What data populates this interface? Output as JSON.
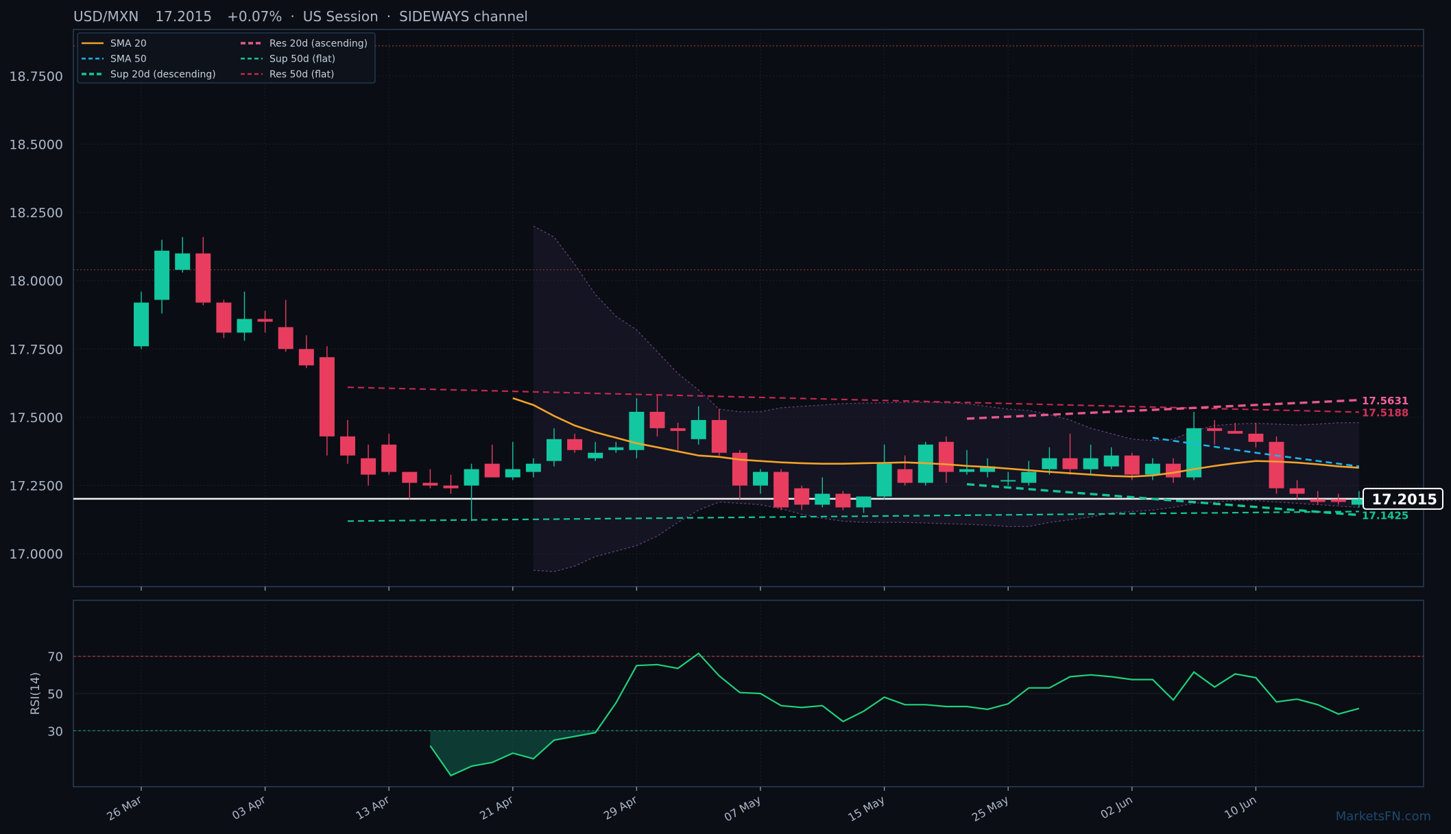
{
  "header": {
    "symbol": "USD/MXN",
    "price": "17.2015",
    "change": "+0.07%",
    "session": "US Session",
    "pattern": "SIDEWAYS channel",
    "separator": "·"
  },
  "watermark": "MarketsFN.com",
  "colors": {
    "background": "#0b0e15",
    "panel_border": "#2a3e57",
    "up": "#13c8a0",
    "down": "#e83d5f",
    "sma20": "#f2a32a",
    "sma50": "#1eb4ea",
    "support": "#14c695",
    "resistance_20d": "#e8588c",
    "resistance_50d": "#c4284f",
    "rsi": "#1fd17a",
    "band": "#7a4c8e"
  },
  "chart_data": [
    {
      "type": "candlestick",
      "title": "USD/MXN",
      "ylim": [
        16.88,
        18.92
      ],
      "y_ticks": [
        "17.0000",
        "17.2500",
        "17.5000",
        "17.7500",
        "18.0000",
        "18.2500",
        "18.5000",
        "18.7500"
      ],
      "y_tick_values": [
        17.0,
        17.25,
        17.5,
        17.75,
        18.0,
        18.25,
        18.5,
        18.75
      ],
      "x_ticks": [
        "26 Mar",
        "03 Apr",
        "13 Apr",
        "21 Apr",
        "29 Apr",
        "07 May",
        "15 May",
        "25 May",
        "02 Jun",
        "10 Jun"
      ],
      "x_tick_bars": [
        0,
        6,
        12,
        18,
        24,
        30,
        36,
        42,
        48,
        54
      ],
      "legend": {
        "position": "top-left",
        "entries": [
          {
            "name": "SMA 20",
            "style": "solid",
            "color": "#f2a32a"
          },
          {
            "name": "SMA 50",
            "style": "dashed",
            "color": "#1eb4ea"
          },
          {
            "name": "Sup 20d (descending)",
            "style": "dashed-thick",
            "color": "#14c695"
          },
          {
            "name": "Res 20d (ascending)",
            "style": "dashed-thick",
            "color": "#e8588c"
          },
          {
            "name": "Sup 50d (flat)",
            "style": "dashed",
            "color": "#14c695"
          },
          {
            "name": "Res 50d (flat)",
            "style": "dashed",
            "color": "#c4284f"
          }
        ]
      },
      "candles": [
        {
          "o": 17.76,
          "h": 17.96,
          "l": 17.75,
          "c": 17.92
        },
        {
          "o": 17.93,
          "h": 18.15,
          "l": 17.88,
          "c": 18.11
        },
        {
          "o": 18.04,
          "h": 18.16,
          "l": 18.03,
          "c": 18.1
        },
        {
          "o": 18.1,
          "h": 18.16,
          "l": 17.91,
          "c": 17.92
        },
        {
          "o": 17.92,
          "h": 17.93,
          "l": 17.79,
          "c": 17.81
        },
        {
          "o": 17.81,
          "h": 17.96,
          "l": 17.78,
          "c": 17.86
        },
        {
          "o": 17.86,
          "h": 17.89,
          "l": 17.81,
          "c": 17.85
        },
        {
          "o": 17.83,
          "h": 17.93,
          "l": 17.74,
          "c": 17.75
        },
        {
          "o": 17.75,
          "h": 17.8,
          "l": 17.68,
          "c": 17.69
        },
        {
          "o": 17.72,
          "h": 17.76,
          "l": 17.36,
          "c": 17.43
        },
        {
          "o": 17.43,
          "h": 17.49,
          "l": 17.33,
          "c": 17.36
        },
        {
          "o": 17.35,
          "h": 17.4,
          "l": 17.25,
          "c": 17.29
        },
        {
          "o": 17.4,
          "h": 17.44,
          "l": 17.29,
          "c": 17.3
        },
        {
          "o": 17.3,
          "h": 17.3,
          "l": 17.2,
          "c": 17.26
        },
        {
          "o": 17.26,
          "h": 17.31,
          "l": 17.24,
          "c": 17.25
        },
        {
          "o": 17.25,
          "h": 17.29,
          "l": 17.22,
          "c": 17.24
        },
        {
          "o": 17.25,
          "h": 17.33,
          "l": 17.12,
          "c": 17.31
        },
        {
          "o": 17.33,
          "h": 17.4,
          "l": 17.28,
          "c": 17.28
        },
        {
          "o": 17.28,
          "h": 17.41,
          "l": 17.27,
          "c": 17.31
        },
        {
          "o": 17.3,
          "h": 17.35,
          "l": 17.28,
          "c": 17.33
        },
        {
          "o": 17.34,
          "h": 17.46,
          "l": 17.32,
          "c": 17.42
        },
        {
          "o": 17.42,
          "h": 17.44,
          "l": 17.37,
          "c": 17.38
        },
        {
          "o": 17.35,
          "h": 17.41,
          "l": 17.34,
          "c": 17.37
        },
        {
          "o": 17.38,
          "h": 17.41,
          "l": 17.37,
          "c": 17.39
        },
        {
          "o": 17.38,
          "h": 17.57,
          "l": 17.35,
          "c": 17.52
        },
        {
          "o": 17.52,
          "h": 17.58,
          "l": 17.43,
          "c": 17.46
        },
        {
          "o": 17.46,
          "h": 17.48,
          "l": 17.38,
          "c": 17.45
        },
        {
          "o": 17.42,
          "h": 17.54,
          "l": 17.4,
          "c": 17.49
        },
        {
          "o": 17.49,
          "h": 17.53,
          "l": 17.36,
          "c": 17.37
        },
        {
          "o": 17.37,
          "h": 17.38,
          "l": 17.2,
          "c": 17.25
        },
        {
          "o": 17.25,
          "h": 17.31,
          "l": 17.22,
          "c": 17.3
        },
        {
          "o": 17.3,
          "h": 17.31,
          "l": 17.16,
          "c": 17.17
        },
        {
          "o": 17.24,
          "h": 17.25,
          "l": 17.16,
          "c": 17.18
        },
        {
          "o": 17.18,
          "h": 17.28,
          "l": 17.17,
          "c": 17.22
        },
        {
          "o": 17.22,
          "h": 17.23,
          "l": 17.16,
          "c": 17.17
        },
        {
          "o": 17.17,
          "h": 17.21,
          "l": 17.15,
          "c": 17.21
        },
        {
          "o": 17.21,
          "h": 17.4,
          "l": 17.2,
          "c": 17.33
        },
        {
          "o": 17.31,
          "h": 17.36,
          "l": 17.25,
          "c": 17.26
        },
        {
          "o": 17.26,
          "h": 17.41,
          "l": 17.25,
          "c": 17.4
        },
        {
          "o": 17.41,
          "h": 17.43,
          "l": 17.26,
          "c": 17.3
        },
        {
          "o": 17.3,
          "h": 17.38,
          "l": 17.29,
          "c": 17.31
        },
        {
          "o": 17.3,
          "h": 17.35,
          "l": 17.28,
          "c": 17.32
        },
        {
          "o": 17.27,
          "h": 17.3,
          "l": 17.25,
          "c": 17.27
        },
        {
          "o": 17.26,
          "h": 17.34,
          "l": 17.25,
          "c": 17.3
        },
        {
          "o": 17.31,
          "h": 17.39,
          "l": 17.29,
          "c": 17.35
        },
        {
          "o": 17.35,
          "h": 17.44,
          "l": 17.29,
          "c": 17.31
        },
        {
          "o": 17.31,
          "h": 17.4,
          "l": 17.29,
          "c": 17.35
        },
        {
          "o": 17.32,
          "h": 17.39,
          "l": 17.31,
          "c": 17.36
        },
        {
          "o": 17.36,
          "h": 17.37,
          "l": 17.27,
          "c": 17.29
        },
        {
          "o": 17.29,
          "h": 17.35,
          "l": 17.27,
          "c": 17.33
        },
        {
          "o": 17.33,
          "h": 17.35,
          "l": 17.26,
          "c": 17.28
        },
        {
          "o": 17.28,
          "h": 17.52,
          "l": 17.27,
          "c": 17.46
        },
        {
          "o": 17.46,
          "h": 17.49,
          "l": 17.4,
          "c": 17.45
        },
        {
          "o": 17.45,
          "h": 17.48,
          "l": 17.44,
          "c": 17.44
        },
        {
          "o": 17.44,
          "h": 17.48,
          "l": 17.39,
          "c": 17.41
        },
        {
          "o": 17.41,
          "h": 17.43,
          "l": 17.22,
          "c": 17.24
        },
        {
          "o": 17.24,
          "h": 17.27,
          "l": 17.2,
          "c": 17.22
        },
        {
          "o": 17.2,
          "h": 17.23,
          "l": 17.18,
          "c": 17.19
        },
        {
          "o": 17.2,
          "h": 17.22,
          "l": 17.18,
          "c": 17.19
        },
        {
          "o": 17.18,
          "h": 17.23,
          "l": 17.17,
          "c": 17.2
        }
      ],
      "sma20": [
        [
          18,
          17.57
        ],
        [
          19,
          17.545
        ],
        [
          20,
          17.505
        ],
        [
          21,
          17.47
        ],
        [
          22,
          17.445
        ],
        [
          23,
          17.425
        ],
        [
          24,
          17.405
        ],
        [
          25,
          17.39
        ],
        [
          26,
          17.375
        ],
        [
          27,
          17.36
        ],
        [
          28,
          17.355
        ],
        [
          29,
          17.345
        ],
        [
          30,
          17.34
        ],
        [
          31,
          17.335
        ],
        [
          32,
          17.332
        ],
        [
          33,
          17.33
        ],
        [
          34,
          17.33
        ],
        [
          35,
          17.332
        ],
        [
          36,
          17.333
        ],
        [
          37,
          17.335
        ],
        [
          38,
          17.332
        ],
        [
          39,
          17.328
        ],
        [
          40,
          17.322
        ],
        [
          41,
          17.318
        ],
        [
          42,
          17.312
        ],
        [
          43,
          17.306
        ],
        [
          44,
          17.3
        ],
        [
          45,
          17.295
        ],
        [
          46,
          17.29
        ],
        [
          47,
          17.285
        ],
        [
          48,
          17.283
        ],
        [
          49,
          17.287
        ],
        [
          50,
          17.297
        ],
        [
          51,
          17.31
        ],
        [
          52,
          17.322
        ],
        [
          53,
          17.332
        ],
        [
          54,
          17.34
        ],
        [
          55,
          17.338
        ],
        [
          56,
          17.334
        ],
        [
          57,
          17.328
        ],
        [
          58,
          17.32
        ],
        [
          59,
          17.315
        ]
      ],
      "sma50": [
        [
          49,
          17.425
        ],
        [
          54,
          17.37
        ],
        [
          59,
          17.32
        ]
      ],
      "support_20d": [
        [
          40,
          17.255
        ],
        [
          59,
          17.142
        ]
      ],
      "resistance_20d": [
        [
          40,
          17.495
        ],
        [
          59,
          17.5631
        ]
      ],
      "support_50d": [
        [
          10,
          17.12
        ],
        [
          59,
          17.155
        ]
      ],
      "resistance_50d": [
        [
          10,
          17.61
        ],
        [
          59,
          17.5188
        ]
      ],
      "band_upper": [
        [
          19,
          18.2
        ],
        [
          20,
          18.16
        ],
        [
          21,
          18.06
        ],
        [
          22,
          17.95
        ],
        [
          23,
          17.87
        ],
        [
          24,
          17.82
        ],
        [
          25,
          17.74
        ],
        [
          26,
          17.66
        ],
        [
          27,
          17.6
        ],
        [
          28,
          17.53
        ],
        [
          29,
          17.52
        ],
        [
          30,
          17.52
        ],
        [
          31,
          17.535
        ],
        [
          32,
          17.54
        ],
        [
          33,
          17.545
        ],
        [
          34,
          17.55
        ],
        [
          35,
          17.552
        ],
        [
          36,
          17.553
        ],
        [
          37,
          17.555
        ],
        [
          38,
          17.555
        ],
        [
          39,
          17.553
        ],
        [
          40,
          17.55
        ],
        [
          41,
          17.54
        ],
        [
          42,
          17.53
        ],
        [
          43,
          17.525
        ],
        [
          44,
          17.51
        ],
        [
          45,
          17.49
        ],
        [
          46,
          17.46
        ],
        [
          47,
          17.44
        ],
        [
          48,
          17.42
        ],
        [
          49,
          17.415
        ],
        [
          50,
          17.42
        ],
        [
          51,
          17.45
        ],
        [
          52,
          17.47
        ],
        [
          53,
          17.475
        ],
        [
          54,
          17.478
        ],
        [
          55,
          17.475
        ],
        [
          56,
          17.472
        ],
        [
          57,
          17.475
        ],
        [
          58,
          17.48
        ],
        [
          59,
          17.48
        ]
      ],
      "band_lower": [
        [
          19,
          16.94
        ],
        [
          20,
          16.935
        ],
        [
          21,
          16.955
        ],
        [
          22,
          16.99
        ],
        [
          23,
          17.01
        ],
        [
          24,
          17.03
        ],
        [
          25,
          17.065
        ],
        [
          26,
          17.115
        ],
        [
          27,
          17.16
        ],
        [
          28,
          17.19
        ],
        [
          29,
          17.185
        ],
        [
          30,
          17.18
        ],
        [
          31,
          17.165
        ],
        [
          32,
          17.145
        ],
        [
          33,
          17.13
        ],
        [
          34,
          17.12
        ],
        [
          35,
          17.115
        ],
        [
          36,
          17.115
        ],
        [
          37,
          17.115
        ],
        [
          38,
          17.113
        ],
        [
          39,
          17.11
        ],
        [
          40,
          17.108
        ],
        [
          41,
          17.105
        ],
        [
          42,
          17.1
        ],
        [
          43,
          17.1
        ],
        [
          44,
          17.115
        ],
        [
          45,
          17.125
        ],
        [
          46,
          17.135
        ],
        [
          47,
          17.15
        ],
        [
          48,
          17.155
        ],
        [
          49,
          17.16
        ],
        [
          50,
          17.17
        ],
        [
          51,
          17.185
        ],
        [
          52,
          17.19
        ],
        [
          53,
          17.195
        ],
        [
          54,
          17.195
        ],
        [
          55,
          17.19
        ],
        [
          56,
          17.185
        ],
        [
          57,
          17.18
        ],
        [
          58,
          17.175
        ],
        [
          59,
          17.17
        ]
      ],
      "hlines": [
        {
          "value": 18.86,
          "color": "#a0432e"
        },
        {
          "value": 18.04,
          "color": "#a0432e"
        },
        {
          "value": 17.2015,
          "color": "#ffffff"
        }
      ],
      "price_label": "17.2015",
      "level_labels": [
        {
          "text": "17.5631",
          "value": 17.5631,
          "color": "#f0629a"
        },
        {
          "text": "17.5188",
          "value": 17.5188,
          "color": "#d23258"
        },
        {
          "text": "17.1425",
          "value": 17.1425,
          "color": "#14c695"
        }
      ]
    },
    {
      "type": "line",
      "ylabel": "RSI(14)",
      "ylim": [
        0,
        100
      ],
      "y_ticks": [
        "30",
        "50",
        "70"
      ],
      "y_tick_values": [
        30,
        50,
        70
      ],
      "levels": [
        {
          "value": 70,
          "color": "#a83a3a"
        },
        {
          "value": 30,
          "color": "#1f8a72"
        }
      ],
      "series": [
        {
          "values": [
            [
              14,
              22
            ],
            [
              15,
              6
            ],
            [
              16,
              11
            ],
            [
              17,
              13
            ],
            [
              18,
              18
            ],
            [
              19,
              15
            ],
            [
              20,
              25
            ],
            [
              21,
              27
            ],
            [
              22,
              29
            ],
            [
              23,
              45
            ],
            [
              24,
              65
            ],
            [
              25,
              65.5
            ],
            [
              26,
              63.5
            ],
            [
              27,
              71.5
            ],
            [
              28,
              59.5
            ],
            [
              29,
              50.5
            ],
            [
              30,
              50
            ],
            [
              31,
              43.5
            ],
            [
              32,
              42.5
            ],
            [
              33,
              43.5
            ],
            [
              34,
              35
            ],
            [
              35,
              40.5
            ],
            [
              36,
              48
            ],
            [
              37,
              44
            ],
            [
              38,
              44
            ],
            [
              39,
              43
            ],
            [
              40,
              43
            ],
            [
              41,
              41.5
            ],
            [
              42,
              44.5
            ],
            [
              43,
              53
            ],
            [
              44,
              53
            ],
            [
              45,
              59
            ],
            [
              46,
              60
            ],
            [
              47,
              59
            ],
            [
              48,
              57.5
            ],
            [
              49,
              57.5
            ],
            [
              50,
              46.5
            ],
            [
              51,
              61.5
            ],
            [
              52,
              53.5
            ],
            [
              53,
              60.5
            ],
            [
              54,
              58.5
            ],
            [
              55,
              45.5
            ],
            [
              56,
              47
            ],
            [
              57,
              44
            ],
            [
              58,
              39
            ],
            [
              59,
              42
            ]
          ]
        }
      ]
    }
  ]
}
